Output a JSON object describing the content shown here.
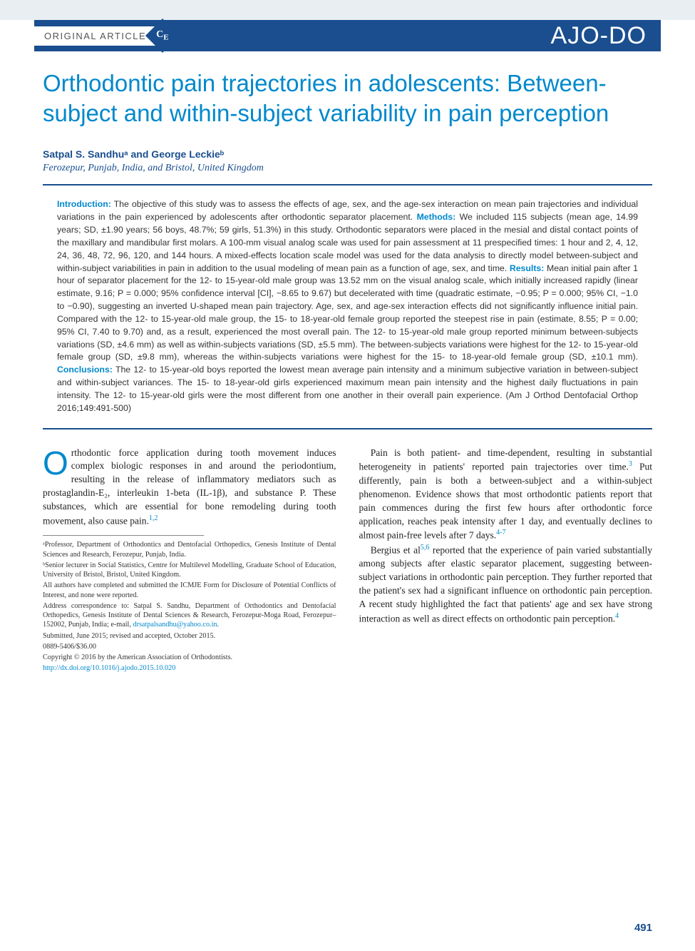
{
  "header": {
    "article_type": "ORIGINAL ARTICLE",
    "badge": "C E",
    "journal_logo": "AJO-DO"
  },
  "title": "Orthodontic pain trajectories in adolescents: Between-subject and within-subject variability in pain perception",
  "authors_line": "Satpal S. Sandhuᵃ and George Leckieᵇ",
  "affiliations_line": "Ferozepur, Punjab, India, and Bristol, United Kingdom",
  "abstract": {
    "introduction_label": "Introduction:",
    "introduction": " The objective of this study was to assess the effects of age, sex, and the age-sex interaction on mean pain trajectories and individual variations in the pain experienced by adolescents after orthodontic separator placement. ",
    "methods_label": "Methods:",
    "methods": " We included 115 subjects (mean age, 14.99 years; SD, ±1.90 years; 56 boys, 48.7%; 59 girls, 51.3%) in this study. Orthodontic separators were placed in the mesial and distal contact points of the maxillary and mandibular first molars. A 100-mm visual analog scale was used for pain assessment at 11 prespecified times: 1 hour and 2, 4, 12, 24, 36, 48, 72, 96, 120, and 144 hours. A mixed-effects location scale model was used for the data analysis to directly model between-subject and within-subject variabilities in pain in addition to the usual modeling of mean pain as a function of age, sex, and time. ",
    "results_label": "Results:",
    "results": " Mean initial pain after 1 hour of separator placement for the 12- to 15-year-old male group was 13.52 mm on the visual analog scale, which initially increased rapidly (linear estimate, 9.16; P = 0.000; 95% confidence interval [CI], −8.65 to 9.67) but decelerated with time (quadratic estimate, −0.95; P = 0.000; 95% CI, −1.0 to −0.90), suggesting an inverted U-shaped mean pain trajectory. Age, sex, and age-sex interaction effects did not significantly influence initial pain. Compared with the 12- to 15-year-old male group, the 15- to 18-year-old female group reported the steepest rise in pain (estimate, 8.55; P = 0.00; 95% CI, 7.40 to 9.70) and, as a result, experienced the most overall pain. The 12- to 15-year-old male group reported minimum between-subjects variations (SD, ±4.6 mm) as well as within-subjects variations (SD, ±5.5 mm). The between-subjects variations were highest for the 12- to 15-year-old female group (SD, ±9.8 mm), whereas the within-subjects variations were highest for the 15- to 18-year-old female group (SD, ±10.1 mm). ",
    "conclusions_label": "Conclusions:",
    "conclusions": " The 12- to 15-year-old boys reported the lowest mean average pain intensity and a minimum subjective variation in between-subject and within-subject variances. The 15- to 18-year-old girls experienced maximum mean pain intensity and the highest daily fluctuations in pain intensity. The 12- to 15-year-old girls were the most different from one another in their overall pain experience. (Am J Orthod Dentofacial Orthop 2016;149:491-500)"
  },
  "body": {
    "col1_p1_dropcap": "O",
    "col1_p1": "rthodontic force application during tooth movement induces complex biologic responses in and around the periodontium, resulting in the release of inflammatory mediators such as prostaglandin-E₂, interleukin 1-beta (IL-1β), and substance P. These substances, which are essential for bone remodeling during tooth movement, also cause pain.",
    "col1_p1_refs": "1,2",
    "col2_p1": "Pain is both patient- and time-dependent, resulting in substantial heterogeneity in patients' reported pain trajectories over time.",
    "col2_p1_refs": "3",
    "col2_p1b": " Put differently, pain is both a between-subject and a within-subject phenomenon. Evidence shows that most orthodontic patients report that pain commences during the first few hours after orthodontic force application, reaches peak intensity after 1 day, and eventually declines to almost pain-free levels after 7 days.",
    "col2_p1b_refs": "4-7",
    "col2_p2a": "Bergius et al",
    "col2_p2a_refs": "5,6",
    "col2_p2b": " reported that the experience of pain varied substantially among subjects after elastic separator placement, suggesting between-subject variations in orthodontic pain perception. They further reported that the patient's sex had a significant influence on orthodontic pain perception. A recent study highlighted the fact that patients' age and sex have strong interaction as well as direct effects on orthodontic pain perception.",
    "col2_p2b_refs": "4"
  },
  "footnotes": {
    "a": "ᵃProfessor, Department of Orthodontics and Dentofacial Orthopedics, Genesis Institute of Dental Sciences and Research, Ferozepur, Punjab, India.",
    "b": "ᵇSenior lecturer in Social Statistics, Centre for Multilevel Modelling, Graduate School of Education, University of Bristol, Bristol, United Kingdom.",
    "icmje": "All authors have completed and submitted the ICMJE Form for Disclosure of Potential Conflicts of Interest, and none were reported.",
    "correspondence": "Address correspondence to: Satpal S. Sandhu, Department of Orthodontics and Dentofacial Orthopedics, Genesis Institute of Dental Sciences & Research, Ferozepur-Moga Road, Ferozepur–152002, Punjab, India; e-mail, ",
    "email": "drsatpalsandhu@yahoo.co.in",
    "email_suffix": ".",
    "submitted": "Submitted, June 2015; revised and accepted, October 2015.",
    "issn": "0889-5406/$36.00",
    "copyright": "Copyright © 2016 by the American Association of Orthodontists.",
    "doi": "http://dx.doi.org/10.1016/j.ajodo.2015.10.020"
  },
  "page_number": "491",
  "colors": {
    "header_bg": "#1a4e8f",
    "accent": "#0088cc",
    "text": "#222222",
    "abstract_text": "#333333"
  }
}
